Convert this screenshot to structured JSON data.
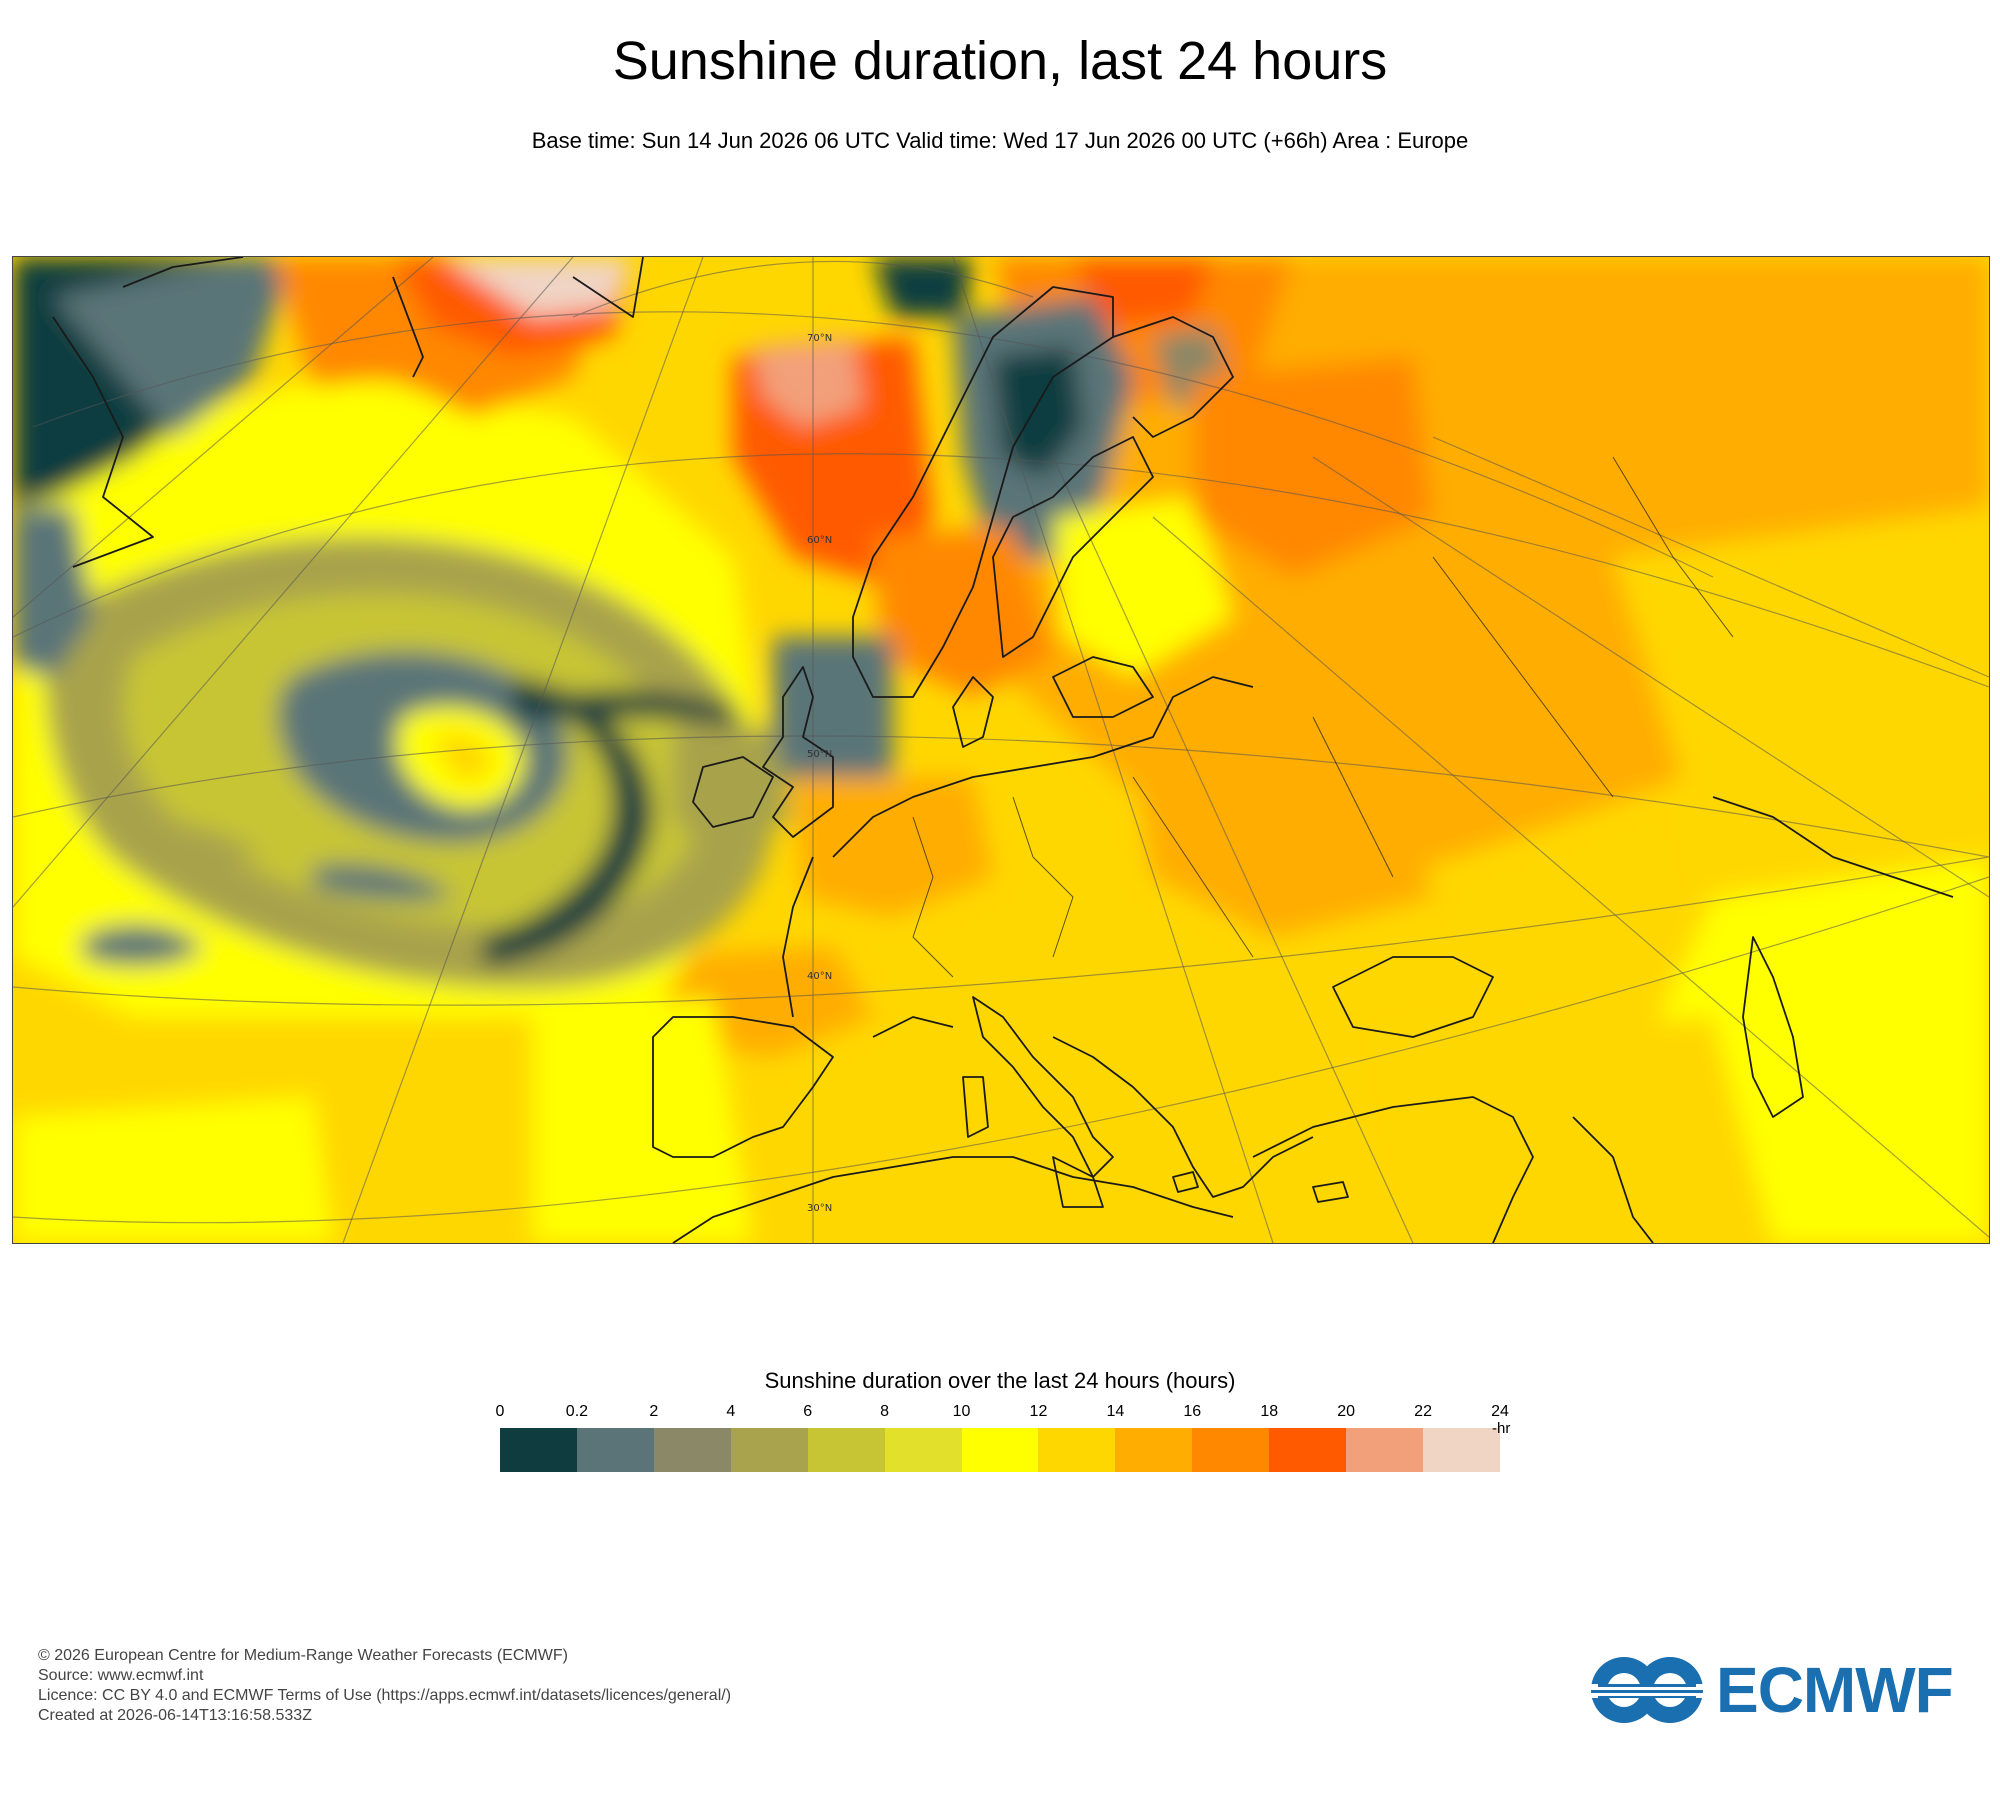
{
  "header": {
    "title": "Sunshine duration, last 24 hours",
    "subtitle": "Base time: Sun 14 Jun 2026 06 UTC Valid time: Wed 17 Jun 2026 00 UTC (+66h) Area : Europe"
  },
  "map": {
    "area": "Europe",
    "latitude_labels": [
      "70°N",
      "60°N",
      "50°N",
      "40°N",
      "30°N"
    ]
  },
  "legend": {
    "title": "Sunshine duration over the last 24 hours (hours)",
    "ticks": [
      "0",
      "0.2",
      "2",
      "4",
      "6",
      "8",
      "10",
      "12",
      "14",
      "16",
      "18",
      "20",
      "22",
      "24"
    ],
    "unit": "-hr",
    "colors": [
      "#0f3d3f",
      "#5a7478",
      "#8a8866",
      "#a8a34c",
      "#c8c535",
      "#e3e02c",
      "#ffff00",
      "#ffd700",
      "#ffad00",
      "#ff8800",
      "#ff5a00",
      "#f2a07a",
      "#f0d4c4"
    ]
  },
  "footer": {
    "copyright": "© 2026 European Centre for Medium-Range Weather Forecasts (ECMWF)",
    "source": "Source: www.ecmwf.int",
    "licence": "Licence: CC BY 4.0 and ECMWF Terms of Use (https://apps.ecmwf.int/datasets/licences/general/)",
    "created": "Created at 2026-06-14T13:16:58.533Z"
  },
  "logo": {
    "text": "ECMWF",
    "color": "#1a6fb0"
  }
}
